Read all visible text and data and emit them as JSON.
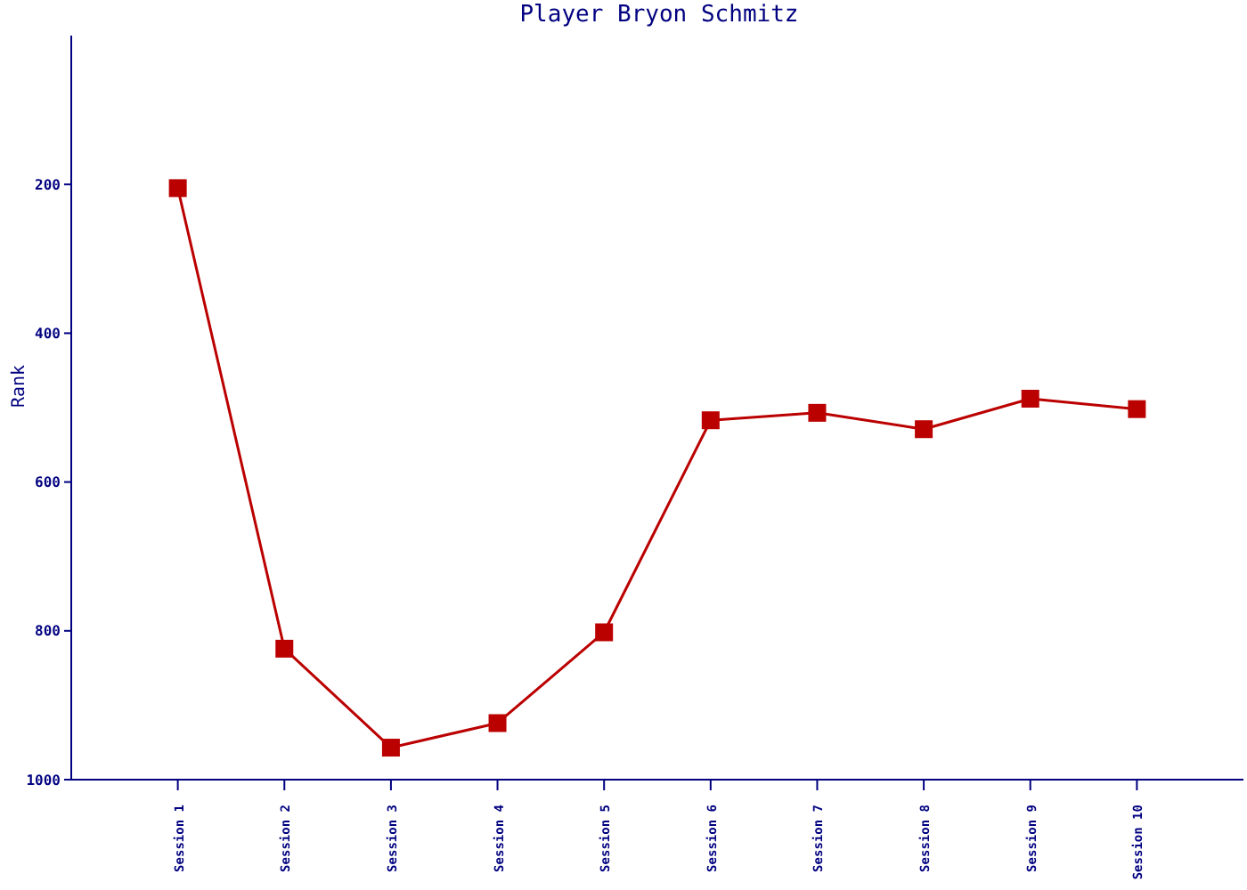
{
  "chart_data": {
    "type": "line",
    "title": "Player Bryon Schmitz",
    "ylabel": "Rank",
    "categories": [
      "Session 1",
      "Session 2",
      "Session 3",
      "Session 4",
      "Session 5",
      "Session 6",
      "Session 7",
      "Session 8",
      "Session 9",
      "Session 10"
    ],
    "series": [
      {
        "color": "#bb0000",
        "values": [
          205,
          824,
          957,
          924,
          802,
          517,
          507,
          529,
          488,
          502
        ]
      }
    ],
    "ylim": [
      1000,
      0
    ],
    "yticks": [
      200,
      400,
      600,
      800,
      1000
    ],
    "marker": "square",
    "line_style": "solid",
    "grid": false,
    "legend": false
  }
}
